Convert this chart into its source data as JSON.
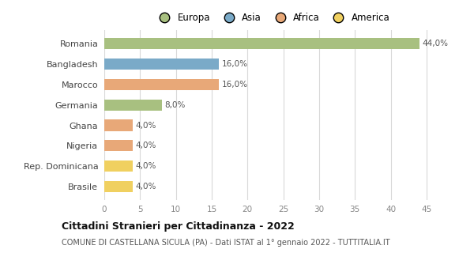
{
  "categories": [
    "Romania",
    "Bangladesh",
    "Marocco",
    "Germania",
    "Ghana",
    "Nigeria",
    "Rep. Dominicana",
    "Brasile"
  ],
  "values": [
    44.0,
    16.0,
    16.0,
    8.0,
    4.0,
    4.0,
    4.0,
    4.0
  ],
  "labels": [
    "44,0%",
    "16,0%",
    "16,0%",
    "8,0%",
    "4,0%",
    "4,0%",
    "4,0%",
    "4,0%"
  ],
  "colors": [
    "#a8c080",
    "#7aaac8",
    "#e8a878",
    "#a8c080",
    "#e8a878",
    "#e8a878",
    "#f0d060",
    "#f0d060"
  ],
  "legend_labels": [
    "Europa",
    "Asia",
    "Africa",
    "America"
  ],
  "legend_colors": [
    "#a8c080",
    "#7aaac8",
    "#e8a878",
    "#f0d060"
  ],
  "xlim": [
    0,
    47
  ],
  "xticks": [
    0,
    5,
    10,
    15,
    20,
    25,
    30,
    35,
    40,
    45
  ],
  "title": "Cittadini Stranieri per Cittadinanza - 2022",
  "subtitle": "COMUNE DI CASTELLANA SICULA (PA) - Dati ISTAT al 1° gennaio 2022 - TUTTITALIA.IT",
  "background_color": "#ffffff",
  "grid_color": "#d8d8d8",
  "bar_height": 0.55
}
